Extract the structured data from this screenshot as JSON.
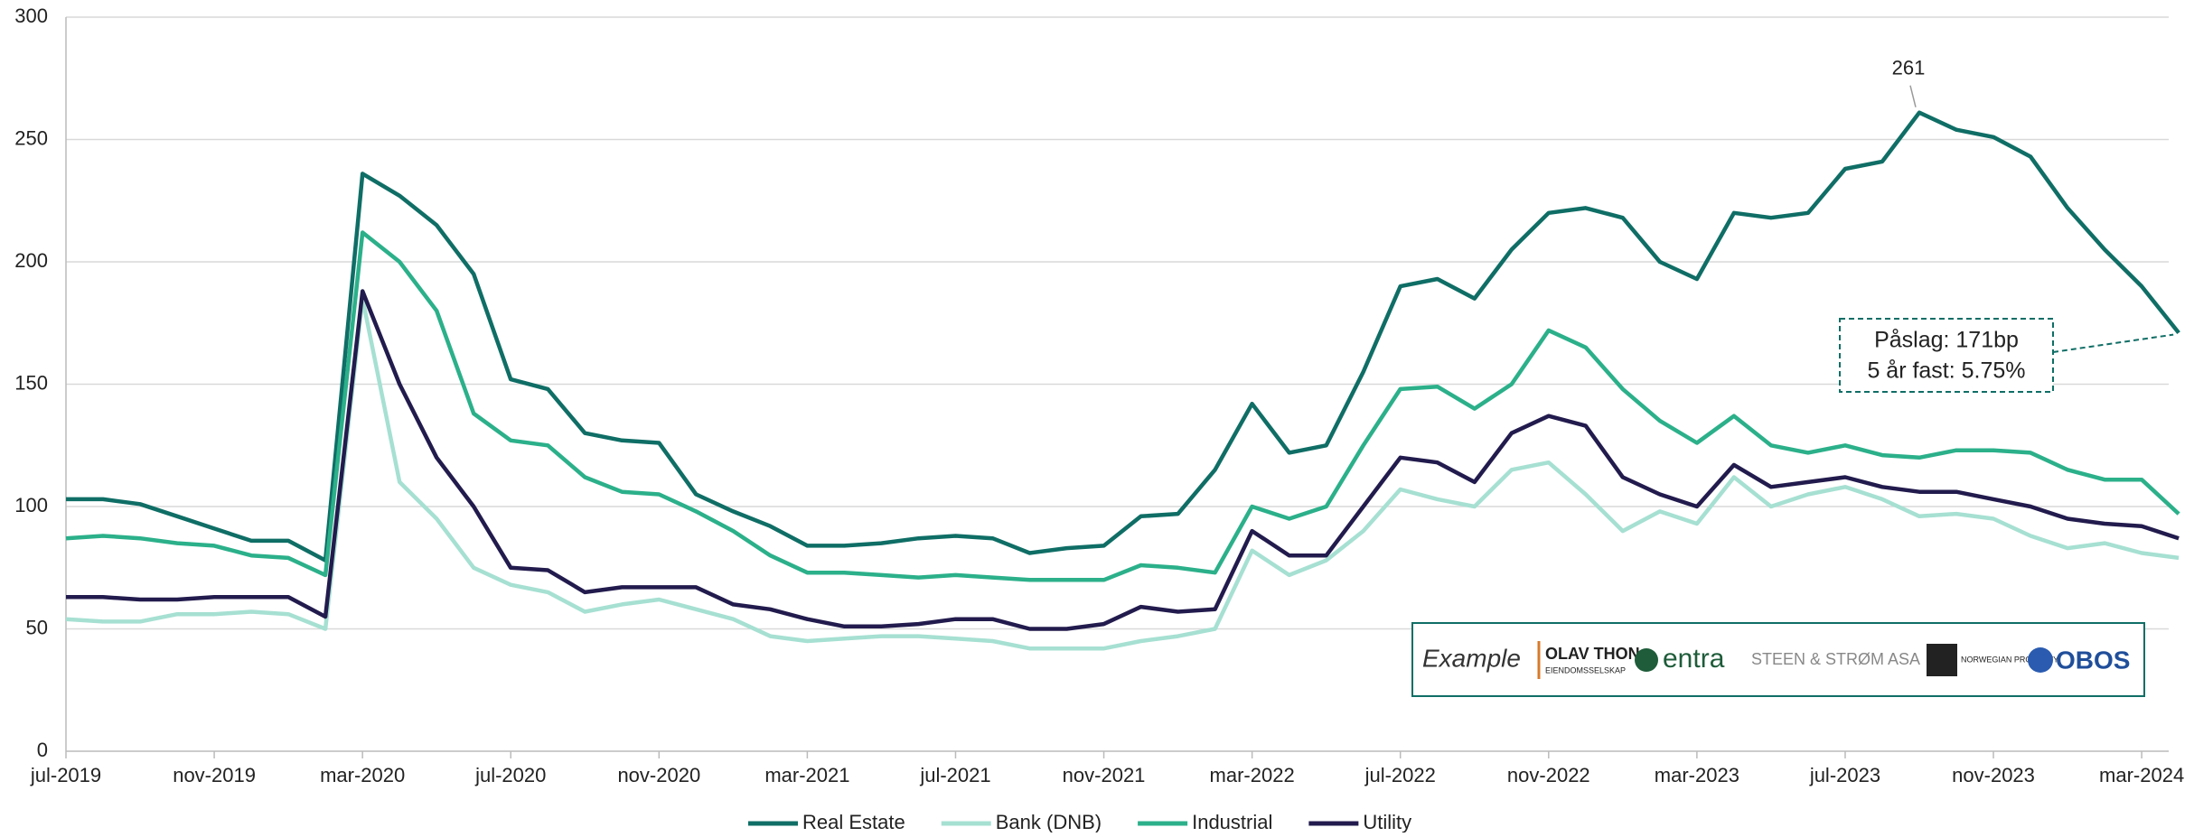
{
  "chart_data": {
    "type": "line",
    "categories": [
      "jul-2019",
      null,
      null,
      null,
      "nov-2019",
      null,
      null,
      null,
      "mar-2020",
      null,
      null,
      null,
      "jul-2020",
      null,
      null,
      null,
      "nov-2020",
      null,
      null,
      null,
      "mar-2021",
      null,
      null,
      null,
      "jul-2021",
      null,
      null,
      null,
      "nov-2021",
      null,
      null,
      null,
      "mar-2022",
      null,
      null,
      null,
      "jul-2022",
      null,
      null,
      null,
      "nov-2022",
      null,
      null,
      null,
      "mar-2023",
      null,
      null,
      null,
      "jul-2023",
      null,
      null,
      null,
      "nov-2023",
      null,
      null,
      null,
      "mar-2024",
      null
    ],
    "series": [
      {
        "name": "Real Estate",
        "color": "#0f6e66",
        "values": [
          103,
          103,
          101,
          96,
          91,
          86,
          86,
          78,
          236,
          227,
          215,
          195,
          152,
          148,
          130,
          127,
          126,
          105,
          98,
          92,
          84,
          84,
          85,
          87,
          88,
          87,
          81,
          83,
          84,
          96,
          97,
          115,
          142,
          122,
          125,
          155,
          190,
          193,
          185,
          205,
          220,
          222,
          218,
          200,
          193,
          220,
          218,
          220,
          238,
          241,
          261,
          254,
          251,
          243,
          222,
          205,
          190,
          171
        ]
      },
      {
        "name": "Bank (DNB)",
        "color": "#a6e0d2",
        "values": [
          54,
          53,
          53,
          56,
          56,
          57,
          56,
          50,
          185,
          110,
          95,
          75,
          68,
          65,
          57,
          60,
          62,
          58,
          54,
          47,
          45,
          46,
          47,
          47,
          46,
          45,
          42,
          42,
          42,
          45,
          47,
          50,
          82,
          72,
          78,
          90,
          107,
          103,
          100,
          115,
          118,
          105,
          90,
          98,
          93,
          112,
          100,
          105,
          108,
          103,
          96,
          97,
          95,
          88,
          83,
          85,
          81,
          79
        ]
      },
      {
        "name": "Industrial",
        "color": "#2bb08a",
        "values": [
          87,
          88,
          87,
          85,
          84,
          80,
          79,
          72,
          212,
          200,
          180,
          138,
          127,
          125,
          112,
          106,
          105,
          98,
          90,
          80,
          73,
          73,
          72,
          71,
          72,
          71,
          70,
          70,
          70,
          76,
          75,
          73,
          100,
          95,
          100,
          125,
          148,
          149,
          140,
          150,
          172,
          165,
          148,
          135,
          126,
          137,
          125,
          122,
          125,
          121,
          120,
          123,
          123,
          122,
          115,
          111,
          111,
          97
        ]
      },
      {
        "name": "Utility",
        "color": "#221b4d",
        "values": [
          63,
          63,
          62,
          62,
          63,
          63,
          63,
          55,
          188,
          150,
          120,
          100,
          75,
          74,
          65,
          67,
          67,
          67,
          60,
          58,
          54,
          51,
          51,
          52,
          54,
          54,
          50,
          50,
          52,
          59,
          57,
          58,
          90,
          80,
          80,
          100,
          120,
          118,
          110,
          130,
          137,
          133,
          112,
          105,
          100,
          117,
          108,
          110,
          112,
          108,
          106,
          106,
          103,
          100,
          95,
          93,
          92,
          87
        ]
      }
    ],
    "ylim": [
      0,
      300
    ],
    "yticks": [
      0,
      50,
      100,
      150,
      200,
      250,
      300
    ],
    "grid": true,
    "annotations": [
      "Påslag: 171bp",
      "5 år fast: 5.75%"
    ],
    "logo_box": {
      "label": "Example",
      "logos": [
        "OLAV THON",
        "EIENDOMSSELSKAP",
        "entra",
        "STEEN & STRØM ASA",
        "NORWEGIAN PROPERTY",
        "OBOS"
      ]
    }
  }
}
